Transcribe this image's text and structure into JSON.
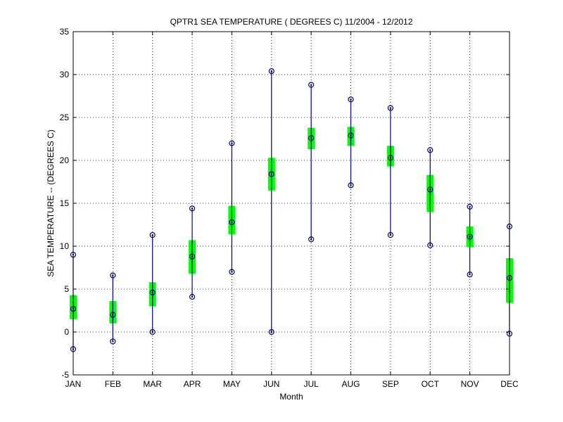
{
  "chart_data": {
    "type": "box",
    "title": "QPTR1  SEA TEMPERATURE ( DEGREES C) 11/2004 - 12/2012",
    "xlabel": "Month",
    "ylabel": "SEA TEMPERATURE -- (DEGREES C)",
    "ylim": [
      -5,
      35
    ],
    "yticks": [
      -5,
      0,
      5,
      10,
      15,
      20,
      25,
      30,
      35
    ],
    "grid": true,
    "categories": [
      "JAN",
      "FEB",
      "MAR",
      "APR",
      "MAY",
      "JUN",
      "JUL",
      "AUG",
      "SEP",
      "OCT",
      "NOV",
      "DEC"
    ],
    "series": [
      {
        "stat": "max",
        "values": [
          9.0,
          6.6,
          11.3,
          14.4,
          22.0,
          30.4,
          28.8,
          27.1,
          26.1,
          21.2,
          14.6,
          12.3
        ]
      },
      {
        "stat": "box_hi",
        "values": [
          4.3,
          3.6,
          5.8,
          10.7,
          14.7,
          20.3,
          23.8,
          23.9,
          21.7,
          18.3,
          12.3,
          8.6
        ]
      },
      {
        "stat": "mean",
        "values": [
          2.7,
          2.0,
          4.6,
          8.8,
          12.8,
          18.4,
          22.6,
          22.9,
          20.3,
          16.6,
          11.1,
          6.3
        ]
      },
      {
        "stat": "box_lo",
        "values": [
          1.5,
          1.0,
          3.0,
          6.8,
          11.4,
          16.5,
          21.3,
          21.7,
          19.3,
          14.0,
          9.9,
          3.4
        ]
      },
      {
        "stat": "min",
        "values": [
          -2.0,
          -1.1,
          0.0,
          4.1,
          7.0,
          0.0,
          10.8,
          17.1,
          11.3,
          10.1,
          6.7,
          -0.2
        ]
      }
    ],
    "colors": {
      "whisker": "#00008b",
      "box": "#00ff00",
      "marker": "#000000",
      "grid": "#000000"
    }
  }
}
